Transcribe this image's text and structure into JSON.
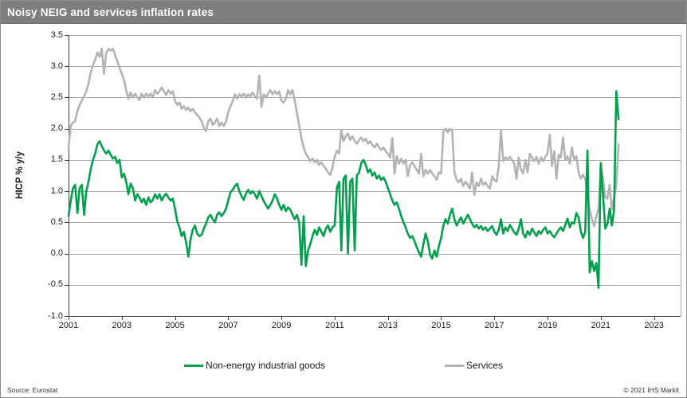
{
  "title": "Noisy NEIG and services inflation rates",
  "legend": {
    "neig": "Non-energy industrial goods",
    "services": "Services"
  },
  "footer": {
    "source": "Source: Eurostat",
    "copyright": "© 2021 IHS Markit"
  },
  "colors": {
    "neig_green": "#00a04d",
    "services_gray": "#b3b3b3",
    "titlebar_gray": "#7e7e7e",
    "gridline_gray": "#a8a8a8",
    "axis_dark": "#404040"
  },
  "chart_data": {
    "type": "line",
    "title": "Noisy NEIG and services inflation rates",
    "xlabel": "",
    "ylabel": "HICP % y/y",
    "ylim": [
      -1.0,
      3.5
    ],
    "xlim": [
      2001,
      2024
    ],
    "grid": "horizontal",
    "legend_position": "bottom",
    "y_ticks": [
      "3.5",
      "3.0",
      "2.5",
      "2.0",
      "1.5",
      "1.0",
      "0.5",
      "0.0",
      "-0.5",
      "-1.0"
    ],
    "x_ticks": [
      "2001",
      "2003",
      "2005",
      "2007",
      "2009",
      "2011",
      "2013",
      "2015",
      "2017",
      "2019",
      "2021",
      "2023"
    ],
    "x_start_year": 2001,
    "points_per_year": 12,
    "series": [
      {
        "name": "Services",
        "color": "#b3b3b3",
        "values": [
          1.7,
          2.05,
          2.1,
          2.12,
          2.28,
          2.38,
          2.45,
          2.52,
          2.6,
          2.72,
          2.9,
          3.02,
          3.1,
          3.22,
          3.15,
          3.28,
          2.88,
          3.22,
          3.28,
          3.25,
          3.28,
          3.18,
          3.08,
          2.98,
          2.88,
          2.78,
          2.62,
          2.48,
          2.58,
          2.5,
          2.56,
          2.5,
          2.46,
          2.56,
          2.5,
          2.56,
          2.52,
          2.56,
          2.5,
          2.62,
          2.56,
          2.6,
          2.66,
          2.6,
          2.54,
          2.62,
          2.56,
          2.6,
          2.45,
          2.38,
          2.42,
          2.32,
          2.36,
          2.3,
          2.34,
          2.28,
          2.32,
          2.26,
          2.22,
          2.18,
          2.12,
          2.02,
          1.96,
          2.12,
          2.16,
          2.06,
          2.1,
          2.16,
          2.04,
          2.1,
          2.04,
          2.12,
          2.26,
          2.36,
          2.44,
          2.55,
          2.48,
          2.55,
          2.52,
          2.56,
          2.5,
          2.55,
          2.52,
          2.58,
          2.52,
          2.48,
          2.85,
          2.35,
          2.55,
          2.5,
          2.56,
          2.62,
          2.55,
          2.6,
          2.55,
          2.6,
          2.45,
          2.42,
          2.48,
          2.62,
          2.55,
          2.62,
          2.45,
          2.25,
          2.05,
          1.85,
          1.7,
          1.6,
          1.55,
          1.48,
          1.52,
          1.46,
          1.5,
          1.42,
          1.46,
          1.4,
          1.36,
          1.3,
          1.26,
          1.38,
          1.55,
          1.65,
          1.6,
          1.98,
          1.8,
          1.88,
          1.92,
          1.82,
          1.88,
          1.8,
          1.76,
          1.82,
          1.86,
          1.8,
          1.84,
          1.76,
          1.8,
          1.74,
          1.7,
          1.76,
          1.7,
          1.66,
          1.7,
          1.64,
          1.6,
          1.54,
          1.85,
          1.28,
          1.56,
          1.44,
          1.52,
          1.44,
          1.5,
          1.24,
          1.42,
          1.46,
          1.4,
          1.34,
          1.28,
          1.6,
          1.24,
          1.34,
          1.28,
          1.34,
          1.28,
          1.24,
          1.18,
          1.3,
          1.28,
          1.95,
          2.0,
          1.94,
          2.0,
          1.96,
          1.3,
          1.18,
          1.14,
          1.2,
          1.08,
          1.15,
          1.1,
          1.04,
          1.3,
          0.94,
          1.14,
          1.08,
          1.2,
          1.1,
          1.14,
          1.08,
          1.04,
          1.24,
          1.18,
          1.15,
          1.4,
          1.98,
          1.48,
          1.54,
          1.5,
          1.55,
          1.5,
          1.44,
          1.2,
          1.54,
          1.34,
          1.28,
          1.5,
          1.3,
          1.6,
          1.54,
          1.48,
          1.55,
          1.44,
          1.54,
          1.48,
          1.55,
          1.6,
          1.9,
          1.4,
          1.64,
          1.2,
          1.58,
          1.54,
          1.86,
          1.5,
          1.56,
          1.44,
          1.7,
          1.5,
          1.56,
          1.3,
          1.2,
          1.26,
          1.2,
          0.9,
          0.7,
          0.55,
          0.44,
          0.6,
          0.72,
          1.42,
          1.2,
          0.9,
          0.88,
          1.1,
          0.7,
          0.9,
          1.1,
          1.75
        ]
      },
      {
        "name": "Non-energy industrial goods",
        "color": "#00a04d",
        "values": [
          0.6,
          0.85,
          1.05,
          1.1,
          0.65,
          1.05,
          1.1,
          0.62,
          1.0,
          1.15,
          1.35,
          1.5,
          1.6,
          1.75,
          1.8,
          1.72,
          1.65,
          1.6,
          1.65,
          1.58,
          1.52,
          1.55,
          1.45,
          1.5,
          1.22,
          1.28,
          1.15,
          0.95,
          1.12,
          1.05,
          0.85,
          0.95,
          0.9,
          0.82,
          0.88,
          0.78,
          0.9,
          0.82,
          0.86,
          0.95,
          0.88,
          0.95,
          0.85,
          0.92,
          0.96,
          0.9,
          0.85,
          0.88,
          0.72,
          0.52,
          0.42,
          0.28,
          0.35,
          0.18,
          -0.05,
          0.22,
          0.38,
          0.45,
          0.32,
          0.28,
          0.3,
          0.4,
          0.48,
          0.58,
          0.62,
          0.55,
          0.5,
          0.62,
          0.66,
          0.6,
          0.65,
          0.72,
          0.85,
          0.98,
          1.02,
          1.08,
          1.12,
          1.0,
          0.92,
          0.86,
          0.96,
          1.02,
          0.96,
          1.0,
          0.95,
          0.88,
          1.0,
          0.92,
          0.84,
          0.78,
          0.72,
          0.78,
          0.85,
          0.95,
          0.88,
          0.78,
          0.7,
          0.78,
          0.68,
          0.74,
          0.7,
          0.62,
          0.55,
          0.62,
          0.5,
          -0.18,
          0.6,
          -0.2,
          0.05,
          0.15,
          0.28,
          0.38,
          0.3,
          0.42,
          0.35,
          0.28,
          0.4,
          0.45,
          0.35,
          0.42,
          0.45,
          1.05,
          1.15,
          0.05,
          1.2,
          1.25,
          0.0,
          1.15,
          1.2,
          0.05,
          1.25,
          1.3,
          1.45,
          1.5,
          1.42,
          1.3,
          1.35,
          1.25,
          1.3,
          1.2,
          1.25,
          1.18,
          1.22,
          1.15,
          1.05,
          0.95,
          0.85,
          0.78,
          0.82,
          0.72,
          0.6,
          0.5,
          0.42,
          0.32,
          0.25,
          0.28,
          0.2,
          0.1,
          0.02,
          -0.05,
          0.15,
          0.32,
          0.2,
          -0.02,
          -0.08,
          0.05,
          -0.05,
          0.12,
          0.25,
          0.45,
          0.55,
          0.48,
          0.62,
          0.72,
          0.55,
          0.45,
          0.52,
          0.58,
          0.48,
          0.55,
          0.62,
          0.55,
          0.48,
          0.42,
          0.46,
          0.4,
          0.44,
          0.38,
          0.42,
          0.36,
          0.4,
          0.44,
          0.35,
          0.3,
          0.38,
          0.55,
          0.32,
          0.42,
          0.36,
          0.46,
          0.4,
          0.34,
          0.3,
          0.4,
          0.55,
          0.32,
          0.26,
          0.36,
          0.3,
          0.4,
          0.34,
          0.28,
          0.36,
          0.32,
          0.38,
          0.42,
          0.32,
          0.36,
          0.3,
          0.26,
          0.32,
          0.38,
          0.42,
          0.36,
          0.46,
          0.56,
          0.42,
          0.5,
          0.48,
          0.65,
          0.58,
          0.35,
          0.25,
          0.35,
          1.65,
          -0.3,
          -0.12,
          -0.28,
          -0.15,
          -0.55,
          1.45,
          0.95,
          0.4,
          0.48,
          0.72,
          0.45,
          0.7,
          2.6,
          2.15
        ]
      }
    ]
  }
}
